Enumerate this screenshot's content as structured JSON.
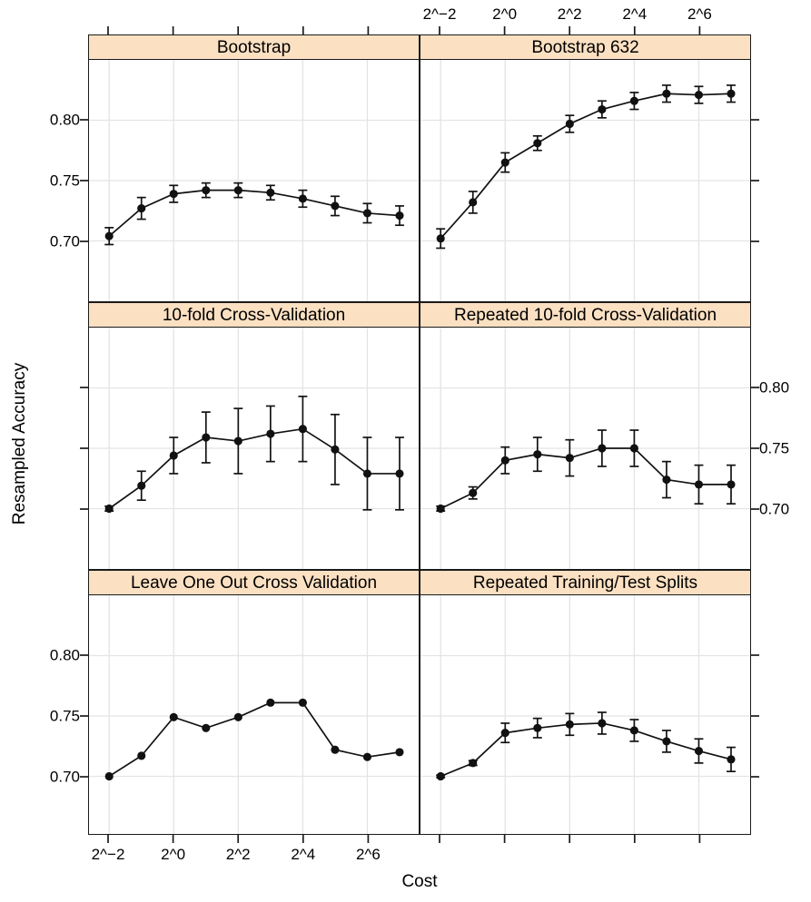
{
  "figure": {
    "ylabel": "Resampled Accuracy",
    "xlabel": "Cost",
    "colors": {
      "background": "#ffffff",
      "strip_bg": "#fbe0c2",
      "border": "#1a1a1a",
      "grid": "#e4e4e4",
      "series": "#111111"
    }
  },
  "chart_data": {
    "type": "line",
    "layout": "3 rows x 2 cols trellis",
    "xlabel": "Cost",
    "ylabel": "Resampled Accuracy",
    "x_scale": "log2",
    "x_log2": [
      -2,
      -1,
      0,
      1,
      2,
      3,
      4,
      5,
      6,
      7
    ],
    "x_tick_log2": [
      -2,
      0,
      2,
      4,
      6
    ],
    "x_tick_labels": [
      "2^−2",
      "2^0",
      "2^2",
      "2^4",
      "2^6"
    ],
    "y_tick_values": [
      0.7,
      0.75,
      0.8
    ],
    "y_tick_labels": [
      "0.70",
      "0.75",
      "0.80"
    ],
    "ylim": [
      0.65,
      0.852
    ],
    "grid": true,
    "axis_label_sides": {
      "top_x_labels": "right column only",
      "bottom_x_labels": "left column only",
      "left_y_labels": "rows 1 and 3",
      "right_y_labels": "row 2"
    },
    "panels": [
      {
        "title": "Bootstrap",
        "accuracy": [
          0.704,
          0.727,
          0.739,
          0.742,
          0.742,
          0.74,
          0.735,
          0.729,
          0.723,
          0.721
        ],
        "error": [
          0.007,
          0.009,
          0.007,
          0.006,
          0.006,
          0.006,
          0.007,
          0.008,
          0.008,
          0.008
        ]
      },
      {
        "title": "Bootstrap 632",
        "accuracy": [
          0.702,
          0.732,
          0.765,
          0.781,
          0.797,
          0.809,
          0.816,
          0.822,
          0.821,
          0.822
        ],
        "error": [
          0.008,
          0.009,
          0.008,
          0.006,
          0.007,
          0.007,
          0.007,
          0.007,
          0.007,
          0.007
        ]
      },
      {
        "title": "10-fold Cross-Validation",
        "accuracy": [
          0.7,
          0.719,
          0.744,
          0.759,
          0.756,
          0.762,
          0.766,
          0.749,
          0.729,
          0.729
        ],
        "error": [
          0.002,
          0.012,
          0.015,
          0.021,
          0.027,
          0.023,
          0.027,
          0.029,
          0.03,
          0.03
        ]
      },
      {
        "title": "Repeated 10-fold Cross-Validation",
        "accuracy": [
          0.7,
          0.713,
          0.74,
          0.745,
          0.742,
          0.75,
          0.75,
          0.724,
          0.72,
          0.72
        ],
        "error": [
          0.002,
          0.005,
          0.011,
          0.014,
          0.015,
          0.015,
          0.015,
          0.015,
          0.016,
          0.016
        ]
      },
      {
        "title": "Leave One Out Cross Validation",
        "accuracy": [
          0.7,
          0.717,
          0.749,
          0.74,
          0.749,
          0.761,
          0.761,
          0.722,
          0.716,
          0.72
        ],
        "error": [
          0,
          0,
          0,
          0,
          0,
          0,
          0,
          0,
          0,
          0
        ]
      },
      {
        "title": "Repeated Training/Test Splits",
        "accuracy": [
          0.7,
          0.711,
          0.736,
          0.74,
          0.743,
          0.744,
          0.738,
          0.729,
          0.721,
          0.714
        ],
        "error": [
          0.001,
          0.002,
          0.008,
          0.008,
          0.009,
          0.009,
          0.009,
          0.009,
          0.01,
          0.01
        ]
      }
    ]
  }
}
